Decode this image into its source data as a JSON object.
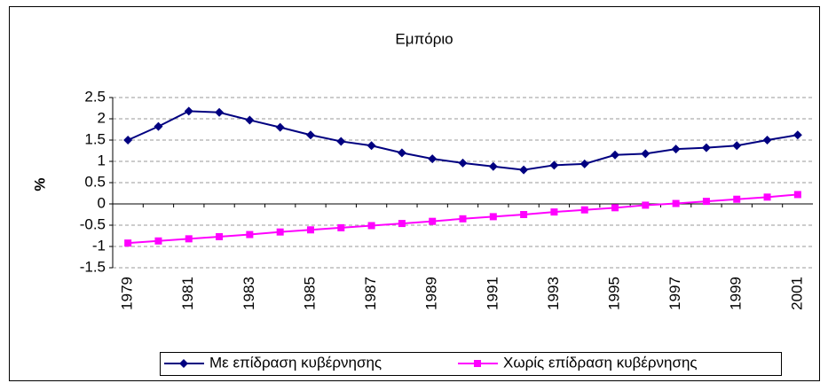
{
  "chart_data": {
    "type": "line",
    "title": "Εμπόριο",
    "y_label": "%",
    "categories": [
      "1979",
      null,
      "1981",
      null,
      "1983",
      null,
      "1985",
      null,
      "1987",
      null,
      "1989",
      null,
      "1991",
      null,
      "1993",
      null,
      "1995",
      null,
      "1997",
      null,
      "1999",
      null,
      "2001"
    ],
    "series": [
      {
        "name": "Με επίδραση κυβέρνησης",
        "color": "#000080",
        "marker": "diamond",
        "values": [
          1.5,
          1.82,
          2.18,
          2.15,
          1.97,
          1.8,
          1.62,
          1.47,
          1.37,
          1.2,
          1.06,
          0.96,
          0.88,
          0.8,
          0.91,
          0.94,
          1.15,
          1.18,
          1.29,
          1.32,
          1.37,
          1.5,
          1.62
        ]
      },
      {
        "name": "Χωρίς επίδραση κυβέρνησης",
        "color": "#ff00ff",
        "marker": "square",
        "values": [
          -0.92,
          -0.87,
          -0.82,
          -0.77,
          -0.72,
          -0.66,
          -0.61,
          -0.56,
          -0.51,
          -0.46,
          -0.41,
          -0.35,
          -0.3,
          -0.25,
          -0.19,
          -0.14,
          -0.09,
          -0.03,
          0.01,
          0.06,
          0.11,
          0.16,
          0.22
        ]
      }
    ],
    "ylim": [
      -1.5,
      2.5
    ],
    "yticks": [
      2.5,
      2,
      1.5,
      1,
      0.5,
      0,
      -0.5,
      -1,
      -1.5
    ],
    "grid": true,
    "legend": "bottom"
  }
}
